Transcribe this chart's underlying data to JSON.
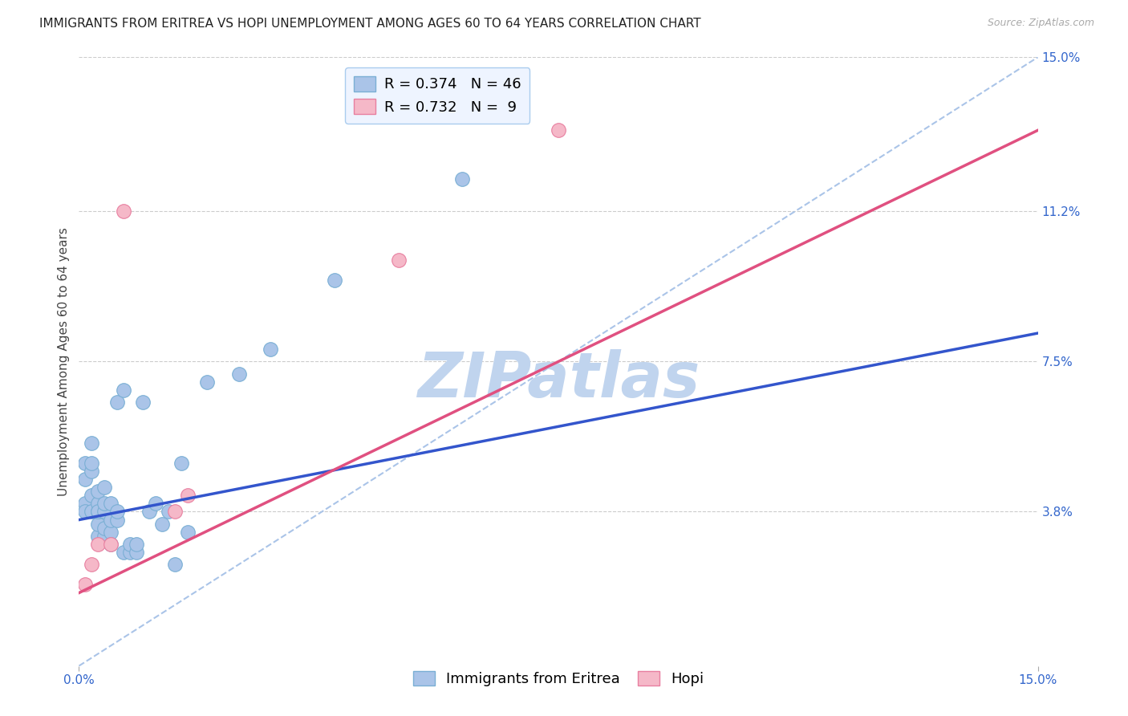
{
  "title": "IMMIGRANTS FROM ERITREA VS HOPI UNEMPLOYMENT AMONG AGES 60 TO 64 YEARS CORRELATION CHART",
  "source": "Source: ZipAtlas.com",
  "ylabel": "Unemployment Among Ages 60 to 64 years",
  "xlim": [
    0.0,
    0.15
  ],
  "ylim": [
    0.0,
    0.15
  ],
  "xtick_labels": [
    "0.0%",
    "15.0%"
  ],
  "ytick_labels": [
    "15.0%",
    "11.2%",
    "7.5%",
    "3.8%"
  ],
  "ytick_positions": [
    0.15,
    0.112,
    0.075,
    0.038
  ],
  "grid_color": "#cccccc",
  "background_color": "#ffffff",
  "blue_scatter_color": "#aac4e8",
  "blue_scatter_edge": "#7aafd4",
  "pink_scatter_color": "#f5b8c8",
  "pink_scatter_edge": "#e87fa0",
  "blue_line_color": "#3355cc",
  "pink_line_color": "#e05080",
  "dashed_line_color": "#aac4e8",
  "legend_R1": "R = 0.374",
  "legend_N1": "N = 46",
  "legend_R2": "R = 0.732",
  "legend_N2": "N =  9",
  "eritrea_x": [
    0.001,
    0.001,
    0.001,
    0.001,
    0.002,
    0.002,
    0.002,
    0.002,
    0.002,
    0.003,
    0.003,
    0.003,
    0.003,
    0.003,
    0.003,
    0.004,
    0.004,
    0.004,
    0.004,
    0.004,
    0.005,
    0.005,
    0.005,
    0.005,
    0.006,
    0.006,
    0.006,
    0.007,
    0.007,
    0.008,
    0.008,
    0.009,
    0.009,
    0.01,
    0.011,
    0.012,
    0.013,
    0.014,
    0.015,
    0.016,
    0.017,
    0.02,
    0.025,
    0.03,
    0.04,
    0.06
  ],
  "eritrea_y": [
    0.05,
    0.046,
    0.04,
    0.038,
    0.038,
    0.042,
    0.048,
    0.055,
    0.05,
    0.032,
    0.035,
    0.038,
    0.04,
    0.043,
    0.038,
    0.032,
    0.034,
    0.038,
    0.04,
    0.044,
    0.033,
    0.036,
    0.04,
    0.03,
    0.036,
    0.038,
    0.065,
    0.068,
    0.028,
    0.028,
    0.03,
    0.028,
    0.03,
    0.065,
    0.038,
    0.04,
    0.035,
    0.038,
    0.025,
    0.05,
    0.033,
    0.07,
    0.072,
    0.078,
    0.095,
    0.12
  ],
  "hopi_x": [
    0.001,
    0.002,
    0.003,
    0.005,
    0.007,
    0.015,
    0.017,
    0.05,
    0.075
  ],
  "hopi_y": [
    0.02,
    0.025,
    0.03,
    0.03,
    0.112,
    0.038,
    0.042,
    0.1,
    0.132
  ],
  "blue_line_x0": 0.0,
  "blue_line_y0": 0.036,
  "blue_line_x1": 0.15,
  "blue_line_y1": 0.082,
  "pink_line_x0": 0.0,
  "pink_line_y0": 0.018,
  "pink_line_x1": 0.15,
  "pink_line_y1": 0.132,
  "watermark": "ZIPatlas",
  "watermark_color": "#c0d4ee",
  "title_fontsize": 11,
  "axis_label_fontsize": 11,
  "tick_fontsize": 11,
  "legend_fontsize": 13
}
